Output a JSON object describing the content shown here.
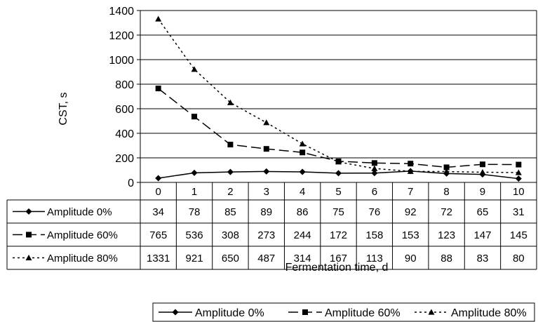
{
  "chart_data": {
    "type": "line",
    "title": "",
    "xlabel": "Fermentation time, d",
    "ylabel": "CST, s",
    "ylim": [
      0,
      1400
    ],
    "yticks": [
      0,
      200,
      400,
      600,
      800,
      1000,
      1200,
      1400
    ],
    "categories": [
      "0",
      "1",
      "2",
      "3",
      "4",
      "5",
      "6",
      "7",
      "8",
      "9",
      "10"
    ],
    "grid": "horizontal",
    "legend_position": "bottom-right",
    "data_table": true,
    "series": [
      {
        "name": "Amplitude 0%",
        "marker": "diamond",
        "dash": "solid",
        "color": "#000000",
        "values": [
          34,
          78,
          85,
          89,
          86,
          75,
          76,
          92,
          72,
          65,
          31
        ]
      },
      {
        "name": "Amplitude 60%",
        "marker": "square",
        "dash": "long-dash",
        "color": "#000000",
        "values": [
          765,
          536,
          308,
          273,
          244,
          172,
          158,
          153,
          123,
          147,
          145
        ]
      },
      {
        "name": "Amplitude 80%",
        "marker": "triangle",
        "dash": "dotted",
        "color": "#000000",
        "values": [
          1331,
          921,
          650,
          487,
          314,
          167,
          113,
          90,
          88,
          83,
          80
        ]
      }
    ]
  }
}
